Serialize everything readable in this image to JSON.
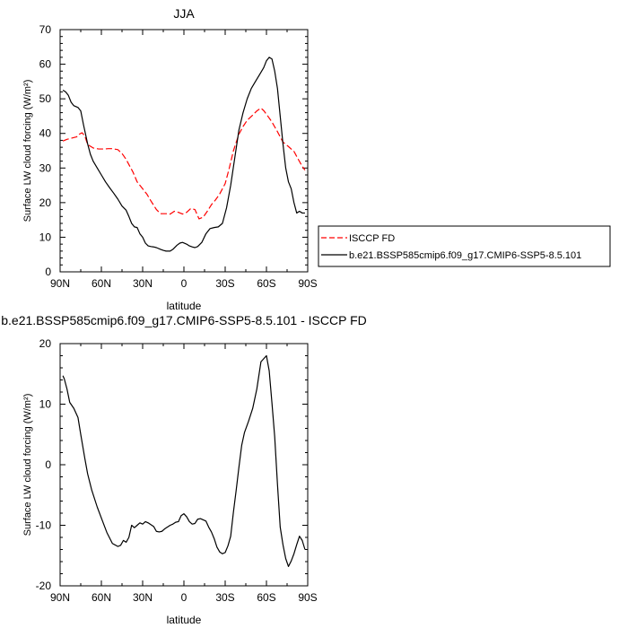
{
  "chart_data": [
    {
      "type": "line",
      "title": "JJA",
      "xlabel": "latitude",
      "ylabel": "Surface LW cloud forcing (W/m²)",
      "xlim": [
        90,
        -90
      ],
      "ylim": [
        0,
        70
      ],
      "xticks": [
        90,
        60,
        30,
        0,
        -30,
        -60,
        -90
      ],
      "xtick_labels": [
        "90N",
        "60N",
        "30N",
        "0",
        "30S",
        "60S",
        "90S"
      ],
      "yticks": [
        0,
        10,
        20,
        30,
        40,
        50,
        60,
        70
      ],
      "legend": "right, outside plot",
      "grid": false,
      "series": [
        {
          "name": "ISCCP FD",
          "color": "#ff0000",
          "dash": "dashed",
          "x": [
            88,
            85,
            82,
            80,
            78,
            76,
            74,
            72,
            70,
            66,
            62,
            58,
            55,
            52,
            48,
            45,
            42,
            40,
            37,
            34,
            30,
            27,
            24,
            20,
            17,
            13,
            10,
            7,
            4,
            1,
            -2,
            -5,
            -8,
            -11,
            -14,
            -17,
            -20,
            -23,
            -26,
            -30,
            -33,
            -36,
            -40,
            -43,
            -46,
            -50,
            -53,
            -56,
            -58,
            -61,
            -64,
            -68,
            -72,
            -76,
            -80,
            -83,
            -86,
            -88
          ],
          "values": [
            37.8,
            38.3,
            38.6,
            38.8,
            39.0,
            39.8,
            40.2,
            39.2,
            36.8,
            35.8,
            35.5,
            35.5,
            35.6,
            35.6,
            35.3,
            34.2,
            32.5,
            31.0,
            28.8,
            26.0,
            24.0,
            22.5,
            20.5,
            18.0,
            16.8,
            16.8,
            16.7,
            17.5,
            17.2,
            16.7,
            17.2,
            18.3,
            18.0,
            15.3,
            15.8,
            17.5,
            19.4,
            20.8,
            22.5,
            25.5,
            30.0,
            35.0,
            39.8,
            42.0,
            43.8,
            45.3,
            46.5,
            47.3,
            46.6,
            45.0,
            43.3,
            40.5,
            37.5,
            36.2,
            34.8,
            32.6,
            30.5,
            29.4
          ]
        },
        {
          "name": "b.e21.BSSP585cmip6.f09_g17.CMIP6-SSP5-8.5.101",
          "color": "#000000",
          "dash": "solid",
          "x": [
            88,
            86,
            84,
            82,
            80,
            77,
            75,
            73,
            70,
            68,
            66,
            63,
            60,
            57,
            54,
            51,
            48,
            45,
            42,
            40,
            38,
            36,
            34,
            32,
            30,
            28,
            26,
            24,
            22,
            20,
            17,
            15,
            13,
            10,
            8,
            5,
            3,
            1,
            -2,
            -4,
            -6,
            -8,
            -10,
            -13,
            -16,
            -19,
            -22,
            -25,
            -28,
            -31,
            -34,
            -37,
            -40,
            -43,
            -46,
            -49,
            -52,
            -55,
            -58,
            -60,
            -62,
            -64,
            -66,
            -68,
            -70,
            -72,
            -74,
            -76,
            -78,
            -80,
            -82,
            -84,
            -86,
            -88
          ],
          "values": [
            52.5,
            52.0,
            51.0,
            49.0,
            48.0,
            47.5,
            46.5,
            42.5,
            37.0,
            34.0,
            32.0,
            30.0,
            28.0,
            26.0,
            24.3,
            22.7,
            21.0,
            19.0,
            17.8,
            16.0,
            14.0,
            13.0,
            12.8,
            11.0,
            10.0,
            8.3,
            7.5,
            7.3,
            7.2,
            7.0,
            6.5,
            6.2,
            6.0,
            6.0,
            6.5,
            7.7,
            8.3,
            8.5,
            8.0,
            7.5,
            7.2,
            7.0,
            7.3,
            8.5,
            11.0,
            12.5,
            12.8,
            13.0,
            14.0,
            18.5,
            25.0,
            33.0,
            41.0,
            46.0,
            50.0,
            53.0,
            55.0,
            57.0,
            59.0,
            61.0,
            62.0,
            61.5,
            58.0,
            53.0,
            45.0,
            37.0,
            30.0,
            26.0,
            24.0,
            20.0,
            17.0,
            17.5,
            17.0,
            17.0
          ]
        }
      ]
    },
    {
      "type": "line",
      "title": "b.e21.BSSP585cmip6.f09_g17.CMIP6-SSP5-8.5.101 - ISCCP FD",
      "xlabel": "latitude",
      "ylabel": "Surface LW cloud forcing (W/m²)",
      "xlim": [
        90,
        -90
      ],
      "ylim": [
        -20,
        20
      ],
      "xticks": [
        90,
        60,
        30,
        0,
        -30,
        -60,
        -90
      ],
      "xtick_labels": [
        "90N",
        "60N",
        "30N",
        "0",
        "30S",
        "60S",
        "90S"
      ],
      "yticks": [
        -20,
        -10,
        0,
        10,
        20
      ],
      "grid": false,
      "series": [
        {
          "color": "#000000",
          "dash": "solid",
          "x": [
            88,
            87,
            85,
            83,
            80,
            77,
            75,
            72,
            70,
            67,
            63,
            60,
            56,
            52,
            48,
            46,
            44,
            42,
            40,
            38,
            36,
            34,
            32,
            30,
            28,
            26,
            22,
            20,
            18,
            16,
            14,
            12,
            10,
            8,
            6,
            4,
            2,
            0,
            -2,
            -4,
            -6,
            -8,
            -10,
            -12,
            -14,
            -16,
            -18,
            -20,
            -22,
            -24,
            -26,
            -28,
            -30,
            -32,
            -34,
            -36,
            -38,
            -40,
            -42,
            -44,
            -47,
            -50,
            -53,
            -56,
            -60,
            -62,
            -64,
            -66,
            -68,
            -70,
            -72,
            -74,
            -76,
            -78,
            -80,
            -82,
            -84,
            -86,
            -88
          ],
          "values": [
            14.7,
            14.2,
            12.5,
            10.3,
            9.3,
            7.8,
            5.0,
            1.0,
            -1.5,
            -4.2,
            -7.0,
            -8.8,
            -11.2,
            -13.0,
            -13.5,
            -13.3,
            -12.5,
            -12.8,
            -12.0,
            -10.0,
            -10.4,
            -10.0,
            -9.6,
            -9.8,
            -9.4,
            -9.6,
            -10.2,
            -11.0,
            -11.1,
            -11.0,
            -10.6,
            -10.3,
            -10.0,
            -9.8,
            -9.5,
            -9.4,
            -8.4,
            -8.1,
            -8.6,
            -9.4,
            -9.8,
            -9.7,
            -9.0,
            -8.9,
            -9.1,
            -9.3,
            -10.3,
            -11.1,
            -12.2,
            -13.6,
            -14.4,
            -14.7,
            -14.5,
            -13.4,
            -11.8,
            -7.8,
            -4.2,
            -0.4,
            3.2,
            5.3,
            7.2,
            9.3,
            12.5,
            17.0,
            18.0,
            15.5,
            10.2,
            4.6,
            -3.2,
            -10.3,
            -13.2,
            -15.5,
            -16.8,
            -15.9,
            -14.7,
            -13.2,
            -11.8,
            -12.5,
            -14.0
          ]
        }
      ]
    }
  ]
}
